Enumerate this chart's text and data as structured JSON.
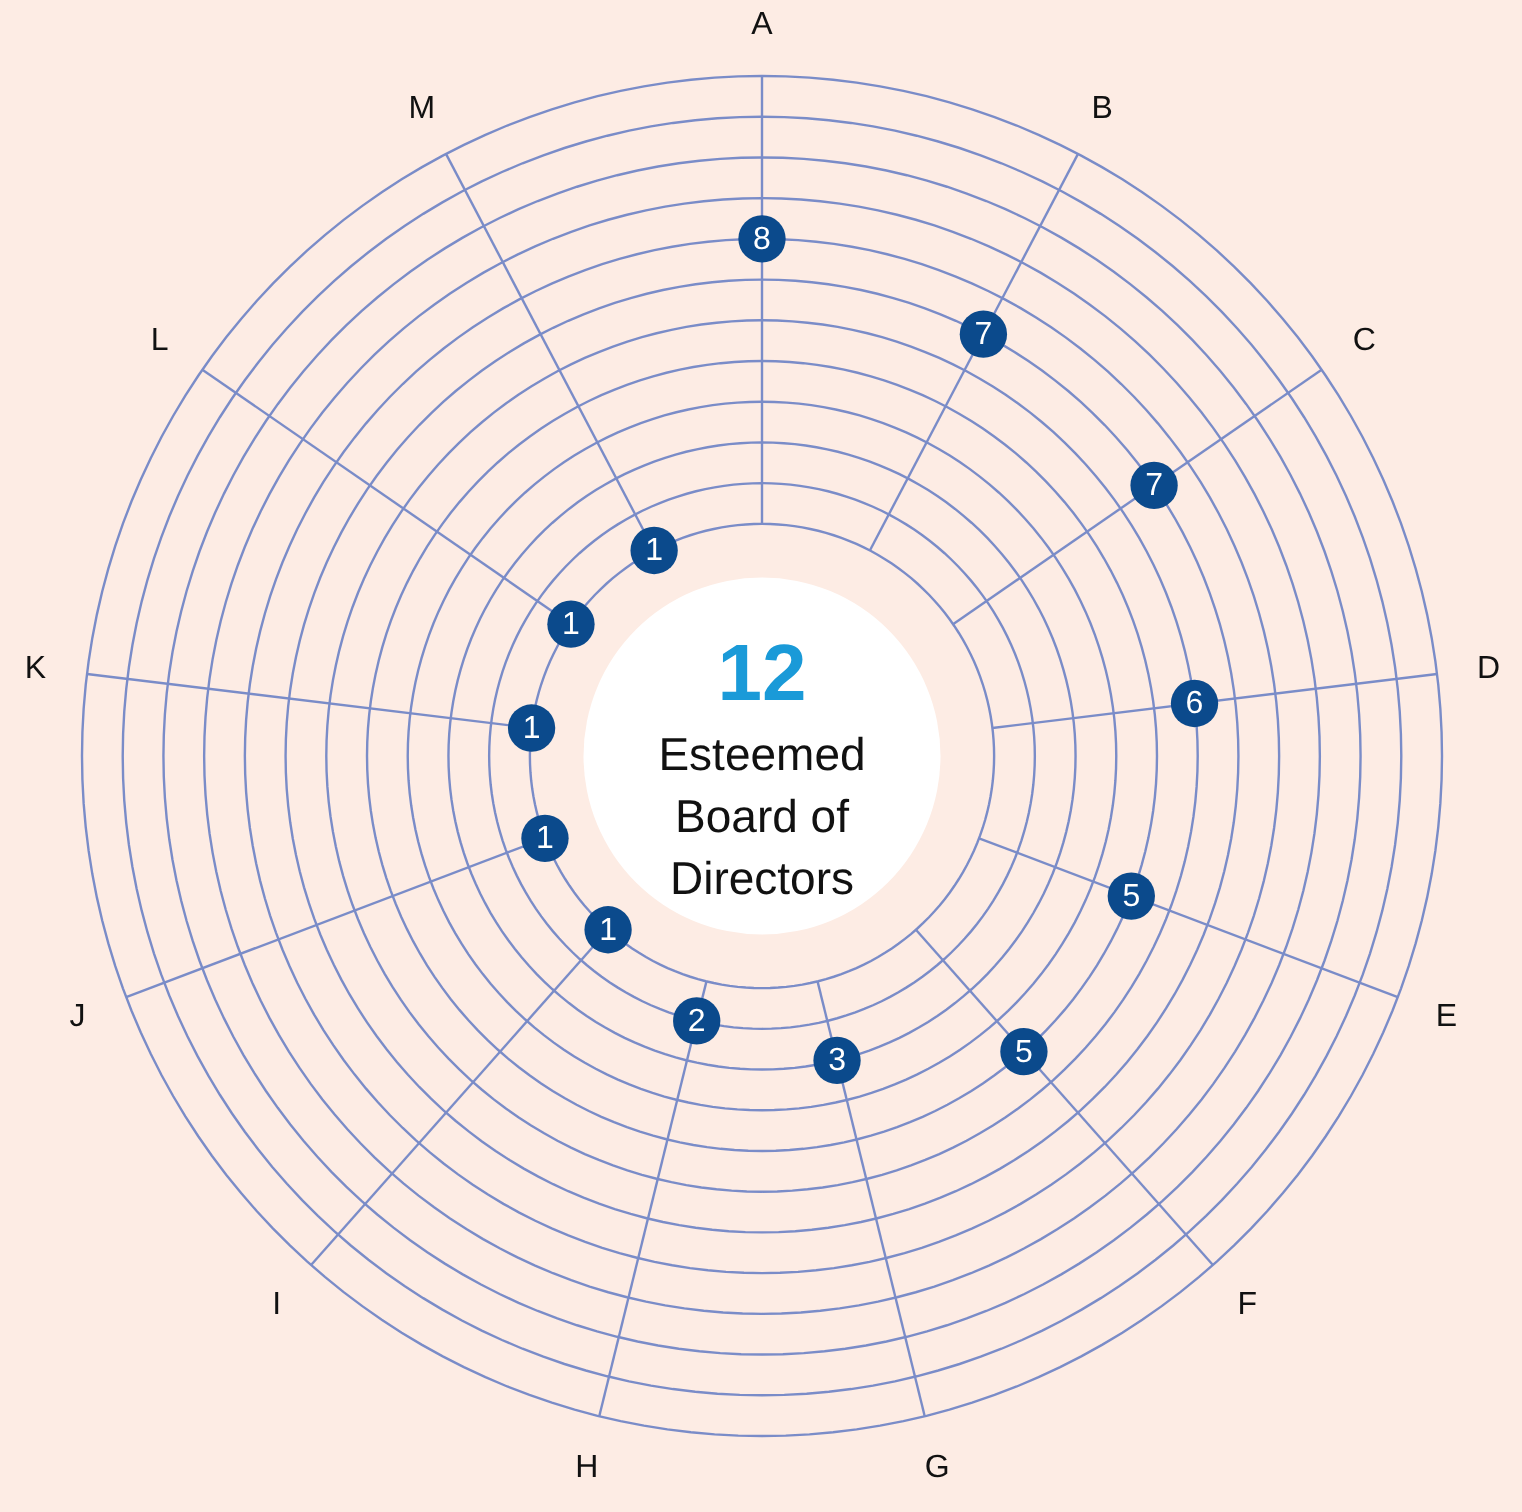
{
  "chart_data": {
    "type": "other",
    "categories": [
      "A",
      "B",
      "C",
      "D",
      "E",
      "F",
      "G",
      "H",
      "I",
      "J",
      "K",
      "L",
      "M"
    ],
    "series": [
      {
        "color": "#0b4a8c",
        "values": [
          8,
          7,
          7,
          6,
          5,
          5,
          3,
          2,
          1,
          1,
          1,
          1,
          1
        ]
      }
    ],
    "data_labels": true,
    "annotations": [
      "12",
      "Esteemed Board of Directors"
    ]
  }
}
